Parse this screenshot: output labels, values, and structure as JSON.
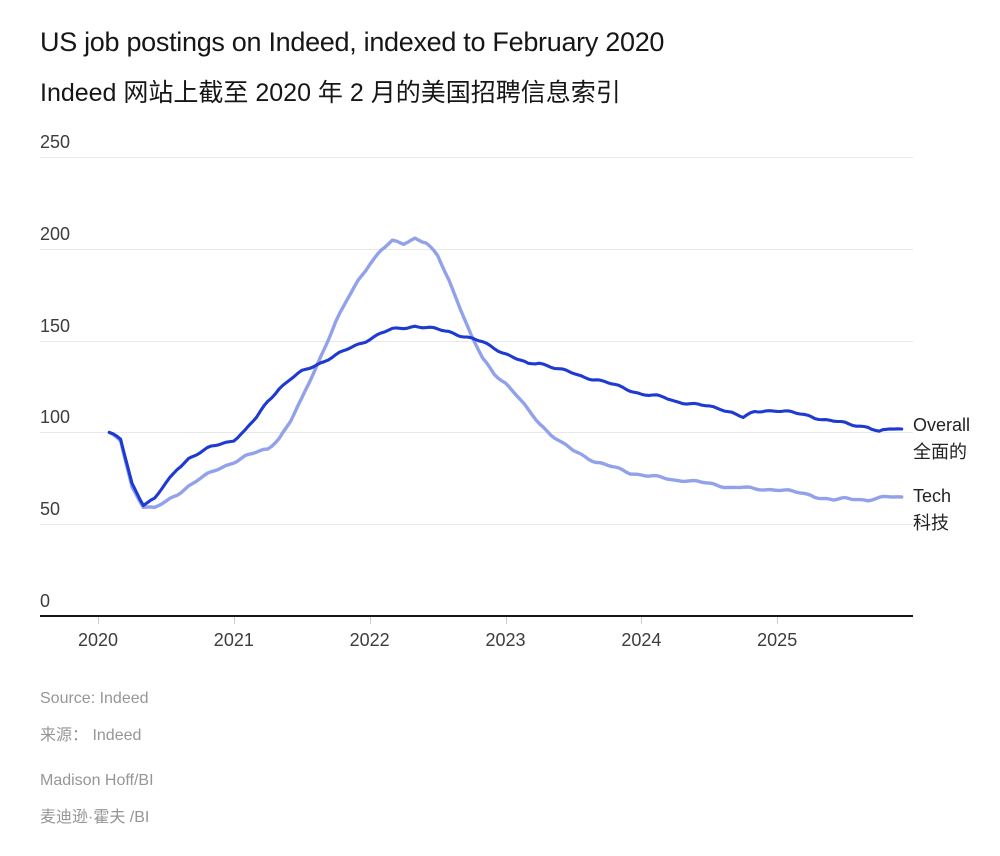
{
  "header": {
    "title": "US job postings on Indeed, indexed to February 2020",
    "subtitle_zh": "Indeed 网站上截至 2020 年 2 月的美国招聘信息索引"
  },
  "footer": {
    "source": "Source: Indeed",
    "source_zh": "来源：  Indeed",
    "credit": "Madison Hoff/BI",
    "credit_zh": "麦迪逊·霍夫 /BI"
  },
  "colors": {
    "overall_line": "#1e3ad1",
    "tech_line": "#92a2ea",
    "gridline": "#e8e8e8",
    "axis": "#161616",
    "tick_text": "#3d3d3d",
    "muted_text": "#969696"
  },
  "chart_data": {
    "type": "line",
    "title": "US job postings on Indeed, indexed to February 2020",
    "title_zh": "Indeed 网站上截至 2020 年 2 月的美国招聘信息索引",
    "index_base": "February 2020 = 100",
    "grid": "horizontal-only",
    "legend_position": "right-of-line-ends",
    "ylim": [
      0,
      250
    ],
    "y_ticks": [
      250,
      200,
      150,
      100,
      50,
      0
    ],
    "x_ticks": [
      "2020",
      "2021",
      "2022",
      "2023",
      "2024",
      "2025"
    ],
    "x_start_month": "2020-02",
    "x_end_month": "2025-12",
    "x_frequency": "monthly",
    "series": [
      {
        "name": "Tech",
        "name_zh": "科技",
        "color": "#92a2ea",
        "end_value": 65,
        "values": [
          100,
          95,
          70,
          60,
          59,
          62,
          66,
          71,
          75,
          78,
          81,
          84,
          87,
          89,
          91,
          97,
          106,
          118,
          132,
          146,
          160,
          172,
          183,
          192,
          199,
          204,
          203,
          206,
          203,
          196,
          183,
          168,
          152,
          140,
          132,
          127,
          120,
          112,
          105,
          99,
          94,
          90,
          87,
          84,
          82,
          80,
          78,
          77,
          76,
          75,
          74,
          74,
          73,
          72,
          71,
          70,
          70,
          69,
          69,
          69,
          68,
          67,
          66,
          64,
          63,
          64,
          64,
          63,
          64,
          65,
          65
        ]
      },
      {
        "name": "Overall",
        "name_zh": "全面的",
        "color": "#1e3ad1",
        "end_value": 102,
        "values": [
          100,
          96,
          72,
          61,
          64,
          72,
          80,
          86,
          89,
          92,
          94,
          96,
          101,
          108,
          117,
          124,
          129,
          133,
          136,
          139,
          142,
          145,
          148,
          151,
          154,
          156,
          157,
          158,
          157,
          156,
          155,
          153,
          151,
          149,
          146,
          143,
          140,
          137,
          138,
          136,
          134,
          132,
          130,
          129,
          127,
          125,
          123,
          121,
          120,
          119,
          117,
          116,
          115,
          114,
          113,
          111,
          108,
          111,
          112,
          112,
          111,
          110,
          109,
          107,
          106,
          105,
          104,
          103,
          100,
          102,
          102
        ]
      }
    ]
  }
}
